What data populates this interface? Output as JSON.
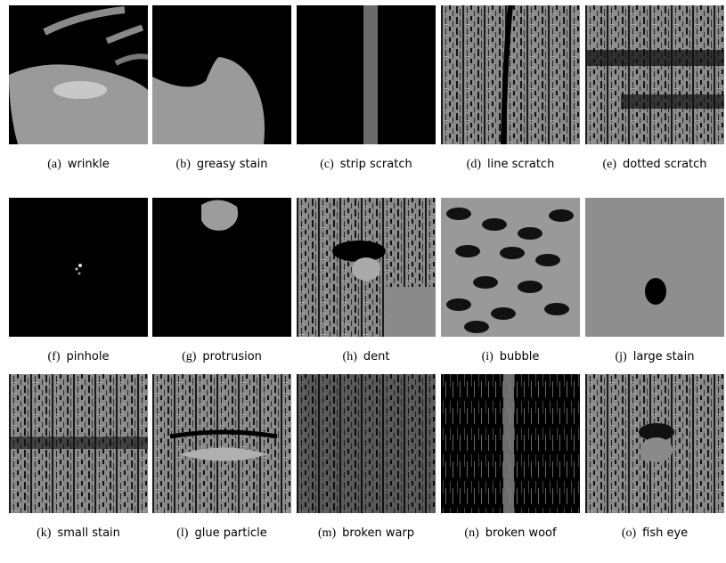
{
  "figure": {
    "panels": [
      {
        "label": "(a)",
        "caption": "wrinkle"
      },
      {
        "label": "(b)",
        "caption": "greasy stain"
      },
      {
        "label": "(c)",
        "caption": "strip scratch"
      },
      {
        "label": "(d)",
        "caption": "line scratch"
      },
      {
        "label": "(e)",
        "caption": "dotted scratch"
      },
      {
        "label": "(f)",
        "caption": "pinhole"
      },
      {
        "label": "(g)",
        "caption": "protrusion"
      },
      {
        "label": "(h)",
        "caption": "dent"
      },
      {
        "label": "(i)",
        "caption": "bubble"
      },
      {
        "label": "(j)",
        "caption": "large stain"
      },
      {
        "label": "(k)",
        "caption": "small stain"
      },
      {
        "label": "(l)",
        "caption": "glue particle"
      },
      {
        "label": "(m)",
        "caption": "broken warp"
      },
      {
        "label": "(n)",
        "caption": "broken woof"
      },
      {
        "label": "(o)",
        "caption": "fish eye"
      }
    ]
  }
}
